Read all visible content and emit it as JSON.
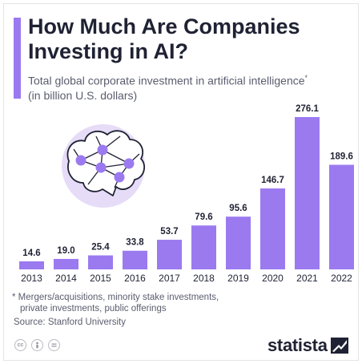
{
  "header": {
    "title": "How Much Are Companies Investing in AI?",
    "subtitle": "Total global corporate investment in artificial intelligence",
    "subtitle_marker": "*",
    "subtitle_unit": "(in billion U.S. dollars)"
  },
  "chart_data": {
    "type": "bar",
    "categories": [
      "2013",
      "2014",
      "2015",
      "2016",
      "2017",
      "2018",
      "2019",
      "2020",
      "2021",
      "2022"
    ],
    "values": [
      14.6,
      19.0,
      25.4,
      33.8,
      53.7,
      79.6,
      95.6,
      146.7,
      276.1,
      189.6
    ],
    "value_labels": [
      "14.6",
      "19.0",
      "25.4",
      "33.8",
      "53.7",
      "79.6",
      "95.6",
      "146.7",
      "276.1",
      "189.6"
    ],
    "title": "How Much Are Companies Investing in AI?",
    "ylabel": "",
    "xlabel": "",
    "ylim": [
      0,
      276.1
    ],
    "grid": false,
    "bar_color": "#9b7af0"
  },
  "footnote": {
    "line1": "* Mergers/acquisitions, minority stake investments,",
    "line2": "private investments, public offerings"
  },
  "source": "Source: Stanford University",
  "brand": {
    "name": "statista"
  },
  "license_icons": [
    "cc-icon",
    "attribution-icon",
    "no-derivatives-icon"
  ],
  "illustration": {
    "icon": "ai-brain-network-icon",
    "circle_color": "#e6dcf8",
    "node_color": "#9b7af0"
  }
}
